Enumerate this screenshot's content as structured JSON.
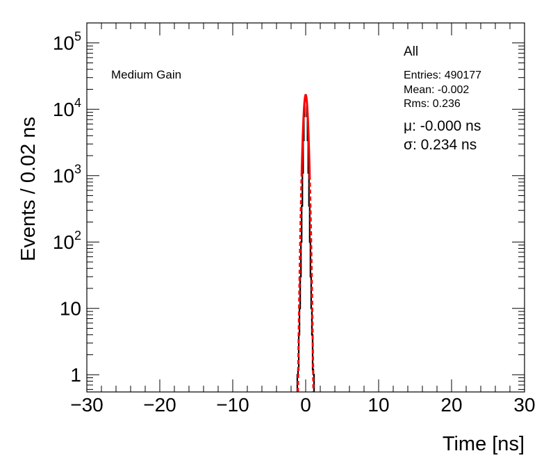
{
  "chart_data": {
    "type": "line",
    "xlabel": "Time [ns]",
    "ylabel": "Events / 0.02 ns",
    "xlim": [
      -30,
      30
    ],
    "ylim": [
      0.55,
      200000
    ],
    "yscale": "log",
    "x_ticks": [
      -30,
      -20,
      -10,
      0,
      10,
      20,
      30
    ],
    "x_tick_labels": [
      "−30",
      "−20",
      "−10",
      "0",
      "10",
      "20",
      "30"
    ],
    "y_ticks": [
      1,
      10,
      100,
      1000,
      10000,
      100000
    ],
    "y_tick_labels": [
      {
        "base": "1",
        "exp": ""
      },
      {
        "base": "10",
        "exp": ""
      },
      {
        "base": "10",
        "exp": "2"
      },
      {
        "base": "10",
        "exp": "3"
      },
      {
        "base": "10",
        "exp": "4"
      },
      {
        "base": "10",
        "exp": "5"
      }
    ],
    "annotations": {
      "gain": "Medium Gain",
      "set": "All",
      "entries": "Entries: 490177",
      "mean": "Mean: -0.002",
      "rms": "Rms: 0.236",
      "mu": "μ: -0.000 ns",
      "sigma": "σ: 0.234 ns"
    },
    "histogram": {
      "color": "#000000",
      "x": [
        -1.1,
        -1.0,
        -0.9,
        -0.8,
        -0.7,
        -0.6,
        -0.5,
        -0.4,
        -0.3,
        -0.2,
        -0.1,
        0.0,
        0.1,
        0.2,
        0.3,
        0.4,
        0.5,
        0.6,
        0.7,
        0.8,
        0.9,
        1.0,
        1.1
      ],
      "y": [
        1,
        1.2,
        4,
        10,
        30,
        100,
        350,
        1100,
        3400,
        7800,
        13500,
        16400,
        13500,
        7800,
        3400,
        1100,
        350,
        100,
        30,
        10,
        4,
        1.2,
        1
      ]
    },
    "fit": {
      "color": "#ff0000",
      "amplitude": 16400,
      "mean": 0.0,
      "sigma": 0.234
    }
  }
}
